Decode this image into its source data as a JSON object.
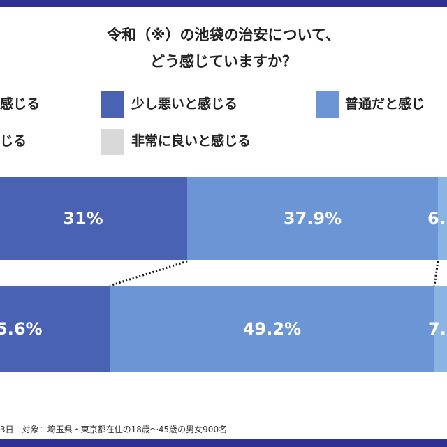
{
  "title_line1": "令和（※）の池袋の治安について、",
  "title_line2": "どう感じていますか？",
  "colors": {
    "navy": "#2e3192",
    "dark": "#4a62b4",
    "medium": "#6b95d4",
    "light": "#8ab4e2",
    "gray": "#d9d9d9"
  },
  "legend": [
    {
      "label": "感じる"
    },
    {
      "label": "少し悪いと感じる",
      "color": "#4a62b4"
    },
    {
      "label": "普通だと感じ",
      "color": "#6b95d4"
    },
    {
      "label": "じる"
    },
    {
      "label": "非常に良いと感じる",
      "color": "#d9d9d9"
    }
  ],
  "chart_data": {
    "type": "bar",
    "orientation": "horizontal-stacked",
    "rows": [
      {
        "segments": [
          {
            "label": "31%",
            "value": 31,
            "color": "#4a62b4"
          },
          {
            "label": "37.9%",
            "value": 37.9,
            "color": "#6b95d4"
          },
          {
            "label": "6.",
            "color": "#8ab4e2"
          }
        ]
      },
      {
        "segments": [
          {
            "label": "5.6%",
            "color": "#4a62b4"
          },
          {
            "label": "49.2%",
            "value": 49.2,
            "color": "#6b95d4"
          },
          {
            "label": "7.",
            "color": "#8ab4e2"
          }
        ]
      }
    ]
  },
  "footer": "3日　対象：埼玉県・東京都在住の18歳～45歳の男女900名"
}
